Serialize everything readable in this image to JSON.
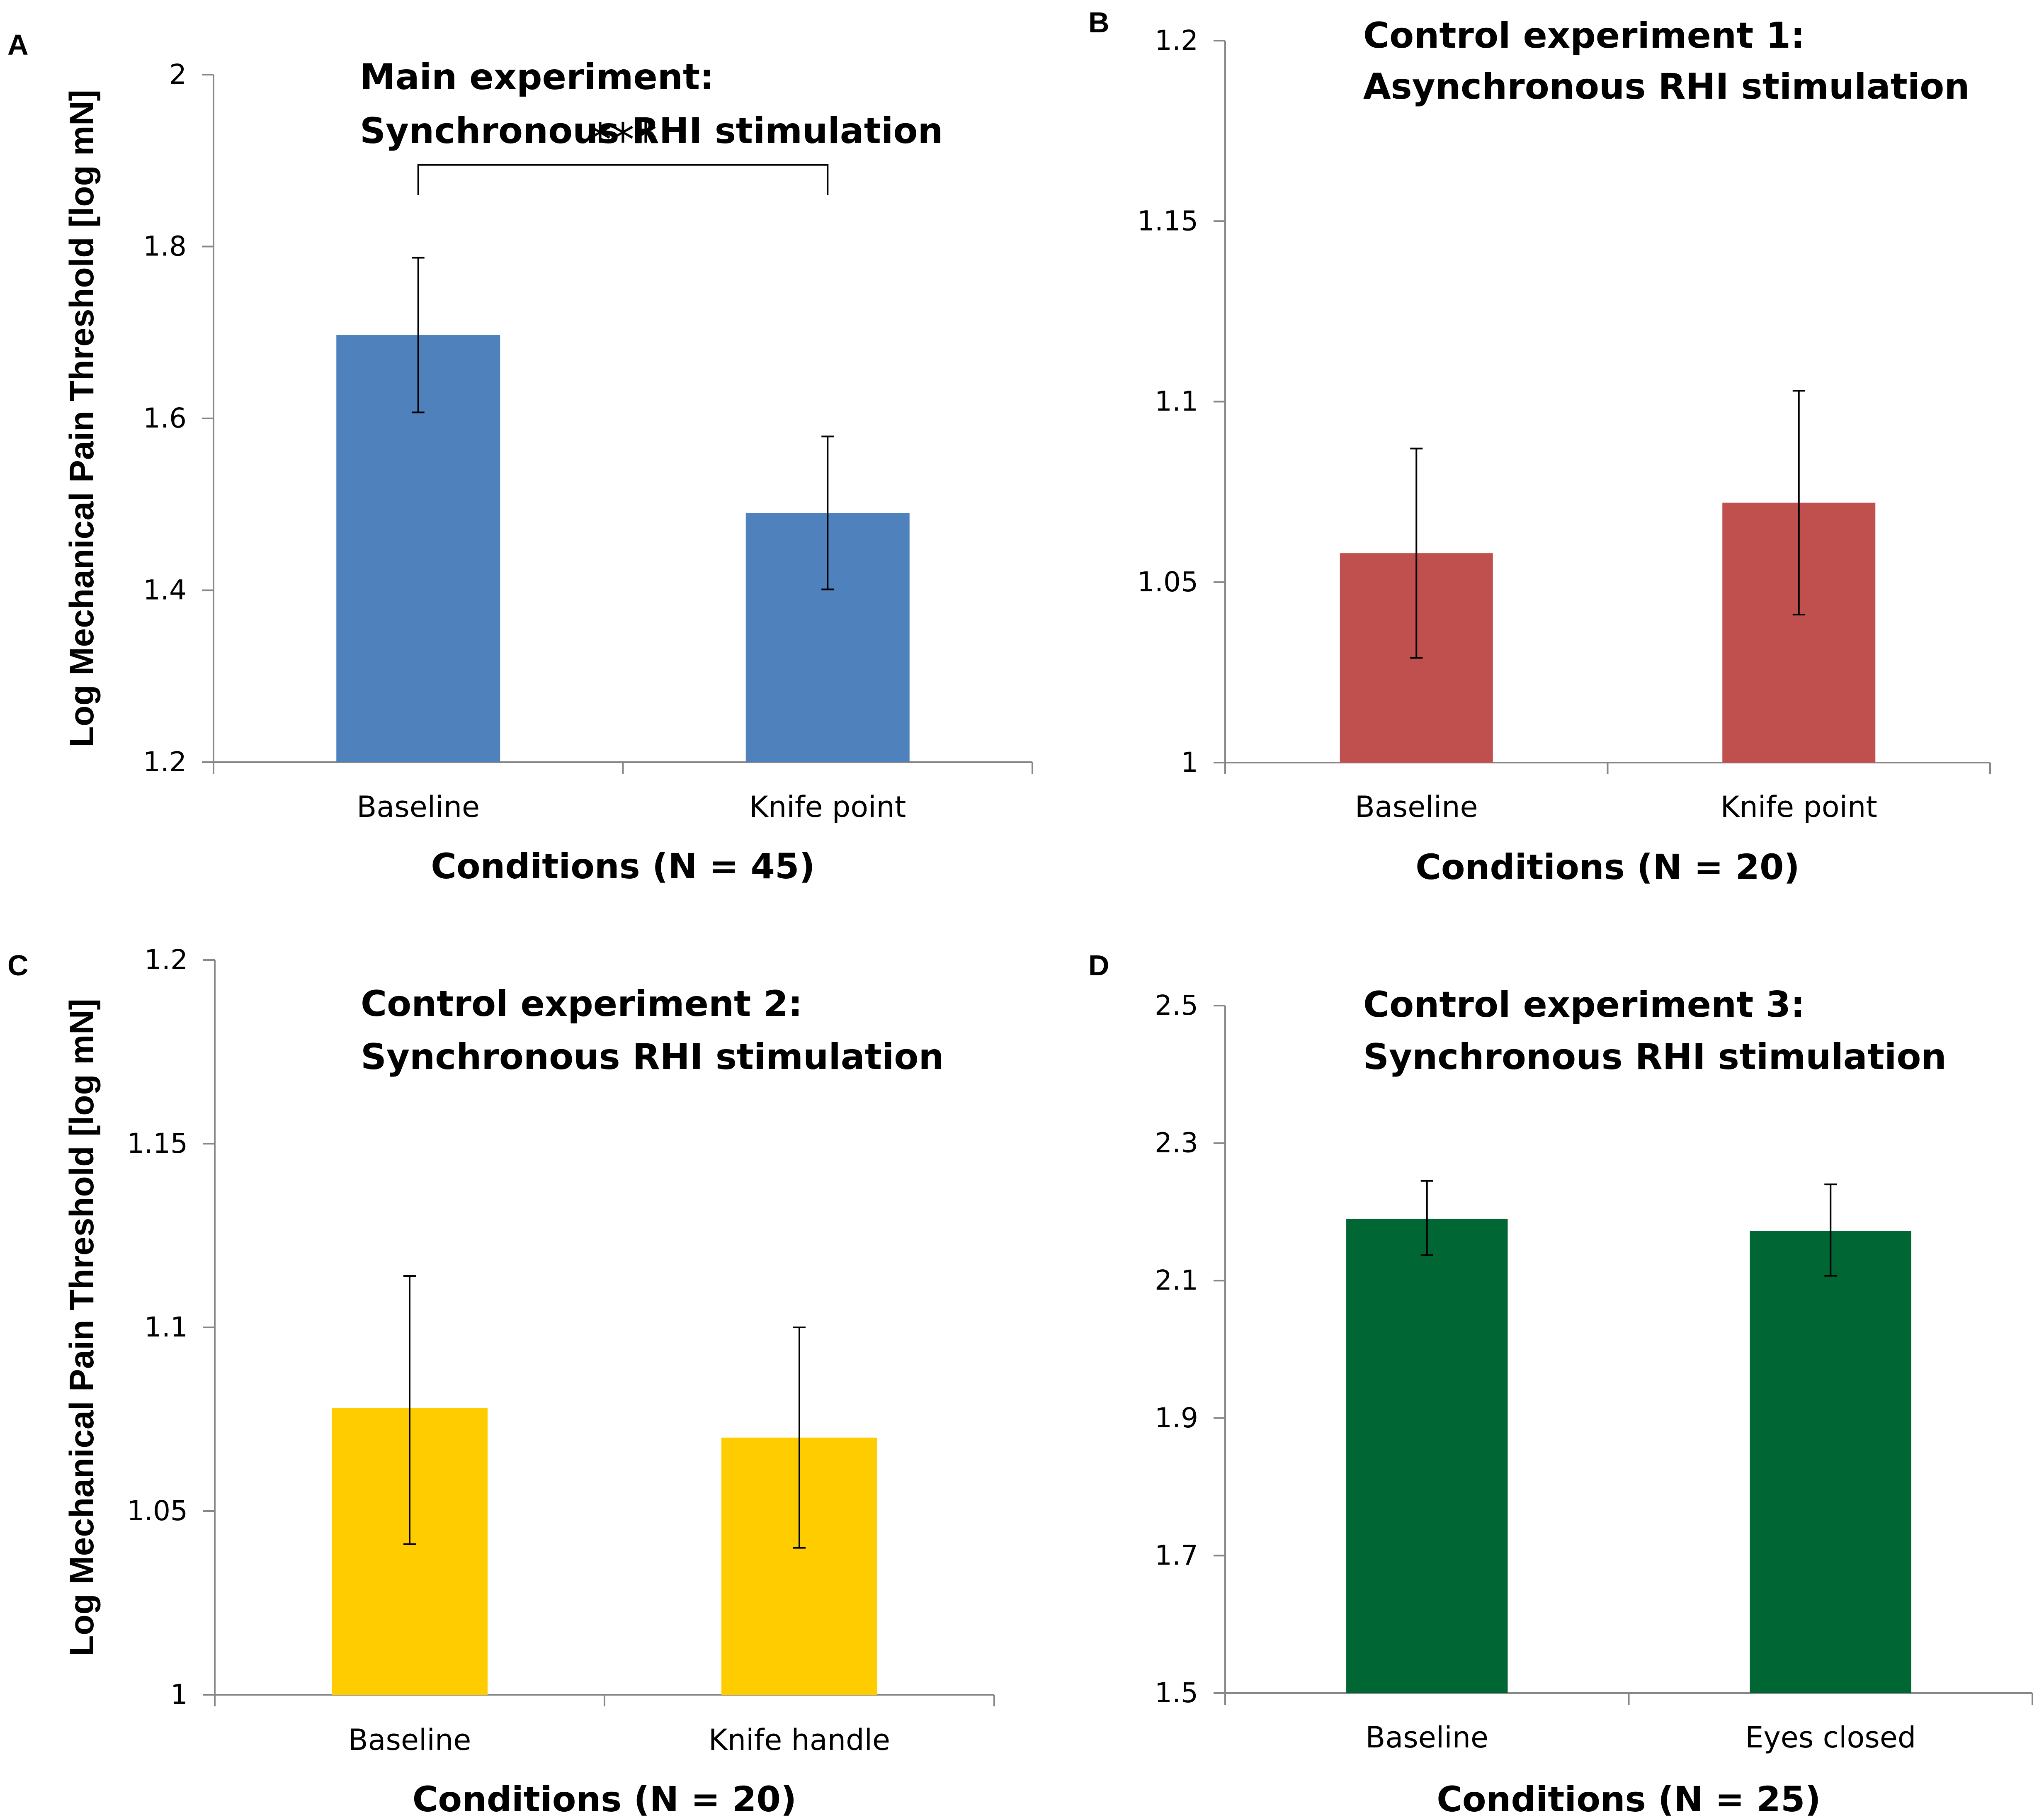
{
  "y_axis_label": "Log Mechanical Pain Threshold [log mN]",
  "chart_data": [
    {
      "type": "bar",
      "panel": "A",
      "title_lines": [
        "Main experiment:",
        "Synchronous RHI stimulation"
      ],
      "categories": [
        "Baseline",
        "Knife point"
      ],
      "values": [
        1.697,
        1.49
      ],
      "error_low": [
        1.607,
        1.401
      ],
      "error_high": [
        1.787,
        1.579
      ],
      "ylim": [
        1.2,
        2.0
      ],
      "yticks": [
        "1.2",
        "1.4",
        "1.6",
        "1.8",
        "2"
      ],
      "ytick_values": [
        1.2,
        1.4,
        1.6,
        1.8,
        2.0
      ],
      "xlabel": "Conditions (N = 45)",
      "ylabel": "Log Mechanical Pain Threshold [log mN]",
      "color": "#4F81BD",
      "significance": {
        "label": "***",
        "from": 0,
        "to": 1,
        "y": 1.895,
        "drop": 1.86
      }
    },
    {
      "type": "bar",
      "panel": "B",
      "title_lines": [
        "Control experiment 1:",
        "Asynchronous RHI stimulation"
      ],
      "categories": [
        "Baseline",
        "Knife point"
      ],
      "values": [
        1.058,
        1.072
      ],
      "error_low": [
        1.029,
        1.041
      ],
      "error_high": [
        1.087,
        1.103
      ],
      "ylim": [
        1.0,
        1.2
      ],
      "yticks": [
        "1",
        "1.05",
        "1.1",
        "1.15",
        "1.2"
      ],
      "ytick_values": [
        1.0,
        1.05,
        1.1,
        1.15,
        1.2
      ],
      "xlabel": "Conditions (N = 20)",
      "ylabel": "",
      "color": "#C0504D"
    },
    {
      "type": "bar",
      "panel": "C",
      "title_lines": [
        "Control experiment 2:",
        "Synchronous RHI stimulation"
      ],
      "categories": [
        "Baseline",
        "Knife handle"
      ],
      "values": [
        1.078,
        1.07
      ],
      "error_low": [
        1.041,
        1.04
      ],
      "error_high": [
        1.114,
        1.1
      ],
      "ylim": [
        1.0,
        1.2
      ],
      "yticks": [
        "1",
        "1.05",
        "1.1",
        "1.15",
        "1.2"
      ],
      "ytick_values": [
        1.0,
        1.05,
        1.1,
        1.15,
        1.2
      ],
      "xlabel": "Conditions (N = 20)",
      "ylabel": "Log Mechanical Pain Threshold [log mN]",
      "color": "#FFCC00"
    },
    {
      "type": "bar",
      "panel": "D",
      "title_lines": [
        "Control experiment 3:",
        "Synchronous RHI stimulation"
      ],
      "categories": [
        "Baseline",
        "Eyes closed"
      ],
      "values": [
        2.19,
        2.172
      ],
      "error_low": [
        2.137,
        2.107
      ],
      "error_high": [
        2.245,
        2.24
      ],
      "ylim": [
        1.5,
        2.5
      ],
      "yticks": [
        "1.5",
        "1.7",
        "1.9",
        "2.1",
        "2.3",
        "2.5"
      ],
      "ytick_values": [
        1.5,
        1.7,
        1.9,
        2.1,
        2.3,
        2.5
      ],
      "xlabel": "Conditions (N = 25)",
      "ylabel": "",
      "color": "#006633"
    }
  ]
}
